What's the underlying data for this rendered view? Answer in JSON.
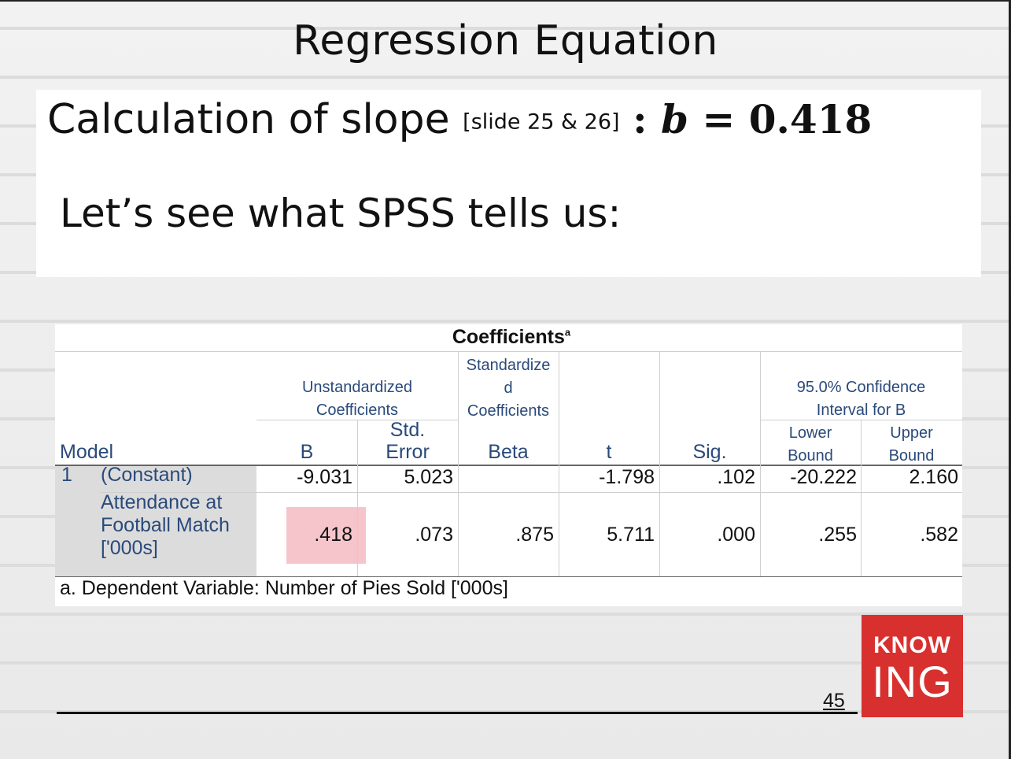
{
  "slide": {
    "title": "Regression Equation",
    "slope_main": "Calculation of slope",
    "slope_ref": "[slide 25 & 26]",
    "slope_colon": ":",
    "slope_var": "b",
    "slope_eq": "=",
    "slope_value": "0.418",
    "spss_line": "Let’s see what SPSS tells us:",
    "page_number": "45",
    "logo_top": "KNOW",
    "logo_bottom": "ING"
  },
  "table": {
    "title": "Coefficients",
    "title_sup": "a",
    "headers": {
      "unstd_1": "Unstandardized",
      "unstd_2": "Coefficients",
      "std_1": "Standardize",
      "std_2": "d",
      "std_3": "Coefficients",
      "ci_1": "95.0% Confidence",
      "ci_2": "Interval for B",
      "model": "Model",
      "b": "B",
      "stderr_1": "Std.",
      "stderr_2": "Error",
      "beta": "Beta",
      "t": "t",
      "sig": "Sig.",
      "lower_1": "Lower",
      "lower_2": "Bound",
      "upper_1": "Upper",
      "upper_2": "Bound"
    },
    "rows": [
      {
        "model": "1",
        "label": "(Constant)",
        "b": "-9.031",
        "stderr": "5.023",
        "beta": "",
        "t": "-1.798",
        "sig": ".102",
        "lower": "-20.222",
        "upper": "2.160"
      },
      {
        "label_1": "Attendance at",
        "label_2": "Football Match",
        "label_3": "['000s]",
        "b": ".418",
        "stderr": ".073",
        "beta": ".875",
        "t": "5.711",
        "sig": ".000",
        "lower": ".255",
        "upper": ".582"
      }
    ],
    "footnote": "a. Dependent Variable: Number of Pies Sold ['000s]"
  },
  "colors": {
    "logo": "#d8302e",
    "highlight": "#ec96a0",
    "header_text": "#2a4a7a"
  }
}
